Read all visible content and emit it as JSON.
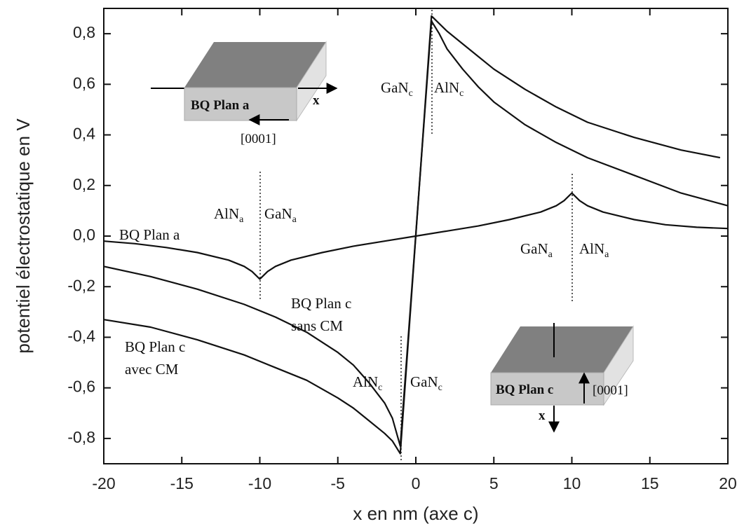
{
  "chart_data": {
    "type": "line",
    "xlabel": "x en nm (axe c)",
    "ylabel": "potentiel électrostatique en V",
    "xlim": [
      -20,
      20
    ],
    "ylim": [
      -0.9,
      0.9
    ],
    "xticks": [
      -20,
      -15,
      -10,
      -5,
      0,
      5,
      10,
      15,
      20
    ],
    "yticks": [
      {
        "value": -0.8,
        "label": "-0,8"
      },
      {
        "value": -0.6,
        "label": "-0,6"
      },
      {
        "value": -0.4,
        "label": "-0,4"
      },
      {
        "value": -0.2,
        "label": "-0,2"
      },
      {
        "value": 0.0,
        "label": "0,0"
      },
      {
        "value": 0.2,
        "label": "0,2"
      },
      {
        "value": 0.4,
        "label": "0,4"
      },
      {
        "value": 0.6,
        "label": "0,6"
      },
      {
        "value": 0.8,
        "label": "0,8"
      }
    ],
    "series": [
      {
        "name": [
          "BQ Plan a"
        ],
        "color": "#111111",
        "x": [
          -20,
          -18,
          -16,
          -14,
          -12,
          -11,
          -10.5,
          -10,
          -9.5,
          -9,
          -8,
          -6,
          -4,
          -2,
          0,
          2,
          4,
          6,
          8,
          9,
          9.5,
          10,
          10.5,
          11,
          12,
          14,
          16,
          18,
          20
        ],
        "values": [
          -0.02,
          -0.03,
          -0.045,
          -0.065,
          -0.095,
          -0.12,
          -0.14,
          -0.17,
          -0.14,
          -0.12,
          -0.095,
          -0.065,
          -0.04,
          -0.02,
          0,
          0.02,
          0.04,
          0.065,
          0.095,
          0.12,
          0.14,
          0.17,
          0.14,
          0.12,
          0.095,
          0.065,
          0.045,
          0.035,
          0.03
        ]
      },
      {
        "name": [
          "BQ Plan c",
          "sans CM"
        ],
        "color": "#111111",
        "x": [
          -20,
          -17,
          -14,
          -11,
          -9,
          -7,
          -5,
          -4,
          -3,
          -2,
          -1.5,
          -1,
          1,
          1.5,
          2,
          3,
          4,
          5,
          7,
          9,
          11,
          14,
          17,
          20
        ],
        "values": [
          -0.12,
          -0.16,
          -0.21,
          -0.27,
          -0.32,
          -0.38,
          -0.46,
          -0.51,
          -0.58,
          -0.66,
          -0.72,
          -0.83,
          0.85,
          0.8,
          0.74,
          0.66,
          0.59,
          0.53,
          0.44,
          0.37,
          0.31,
          0.24,
          0.17,
          0.12
        ]
      },
      {
        "name": [
          "BQ Plan c",
          "avec CM"
        ],
        "color": "#111111",
        "x": [
          -20,
          -17,
          -14,
          -11,
          -9,
          -7,
          -5,
          -4,
          -3,
          -2,
          -1.5,
          -1,
          1,
          1.5,
          2,
          3,
          4,
          5,
          7,
          9,
          11,
          14,
          17,
          19.5
        ],
        "values": [
          -0.33,
          -0.36,
          -0.41,
          -0.47,
          -0.52,
          -0.57,
          -0.64,
          -0.68,
          -0.73,
          -0.78,
          -0.81,
          -0.86,
          0.87,
          0.84,
          0.81,
          0.76,
          0.71,
          0.66,
          0.58,
          0.51,
          0.45,
          0.39,
          0.34,
          0.31
        ]
      }
    ],
    "annotations": [
      {
        "text": "GaN",
        "sub": "c"
      },
      {
        "text": "AlN",
        "sub": "c"
      },
      {
        "text": "AlN",
        "sub": "a"
      },
      {
        "text": "GaN",
        "sub": "a"
      },
      {
        "text": "GaN",
        "sub": "a"
      },
      {
        "text": "AlN",
        "sub": "a"
      },
      {
        "text": "AlN",
        "sub": "c"
      },
      {
        "text": "GaN",
        "sub": "c"
      }
    ],
    "insets": [
      {
        "label": "BQ Plan a",
        "axis": "x",
        "direction": "[0001]"
      },
      {
        "label": "BQ Plan c",
        "axis": "x",
        "direction": "[0001]"
      }
    ]
  }
}
